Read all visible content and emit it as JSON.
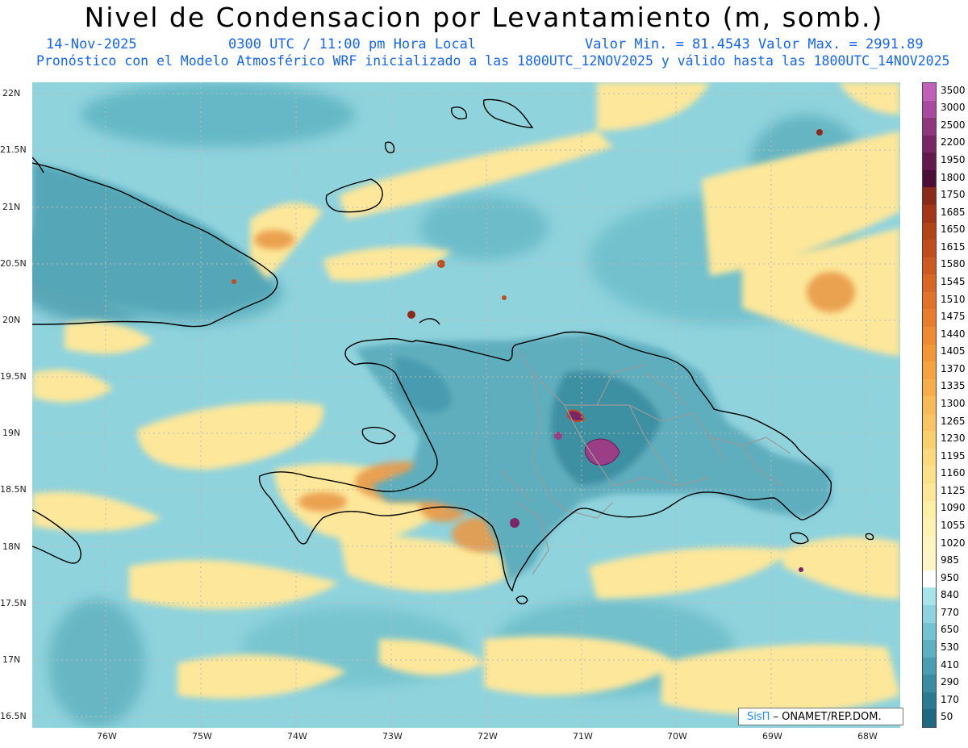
{
  "header": {
    "title": "Nivel de Condensacion por Levantamiento (m, somb.)",
    "date": "14-Nov-2025",
    "time": "0300 UTC / 11:00 pm Hora Local",
    "minmax": "Valor Min. = 81.4543  Valor Max. = 2991.89",
    "forecast": "Pronóstico con el Modelo Atmosférico WRF inicializado a las 1800UTC_12NOV2025 y válido hasta las  1800UTC_14NOV2025"
  },
  "axes": {
    "lat_labels": [
      "22N",
      "21.5N",
      "21N",
      "20.5N",
      "20N",
      "19.5N",
      "19N",
      "18.5N",
      "18N",
      "17.5N",
      "17N",
      "16.5N"
    ],
    "lon_labels": [
      "76W",
      "75W",
      "74W",
      "73W",
      "72W",
      "71W",
      "70W",
      "69W",
      "68W"
    ]
  },
  "credit": {
    "sis": "SisΠ",
    "rest": " – ONAMET/REP.DOM."
  },
  "colorbar": {
    "labels": [
      "3500",
      "3000",
      "2500",
      "2200",
      "1950",
      "1800",
      "1750",
      "1685",
      "1650",
      "1615",
      "1580",
      "1545",
      "1510",
      "1475",
      "1440",
      "1405",
      "1370",
      "1335",
      "1300",
      "1265",
      "1230",
      "1195",
      "1160",
      "1125",
      "1090",
      "1055",
      "1020",
      "985",
      "950",
      "840",
      "770",
      "650",
      "530",
      "410",
      "290",
      "170",
      "50"
    ],
    "colors": [
      "#c060b8",
      "#a84a9e",
      "#90367f",
      "#7a2566",
      "#621a4e",
      "#4a0f38",
      "#8c2a1a",
      "#a33618",
      "#b24418",
      "#c04e1c",
      "#cc5a20",
      "#d86624",
      "#e27228",
      "#e87e2c",
      "#ee8a30",
      "#f29636",
      "#f5a240",
      "#f7ae4a",
      "#f8ba56",
      "#f9c562",
      "#fad06e",
      "#fbd97c",
      "#fce18a",
      "#fde898",
      "#feeea6",
      "#fef2b2",
      "#fff5c0",
      "#fff6c8",
      "#ffffff",
      "#a8e4ec",
      "#8ed4e0",
      "#74c2d2",
      "#5cb0c2",
      "#4a9eb2",
      "#3a8ca2",
      "#2c7a92",
      "#1e6882"
    ]
  },
  "map": {
    "ocean_color": "#8fd3dd",
    "high_lcl_color": "#fde79a",
    "orange_color": "#e89a4a",
    "deep_color": "#4c9fae",
    "purple_color": "#9a3e86",
    "coast_color": "#000000",
    "border_color": "#9a9a9a"
  }
}
